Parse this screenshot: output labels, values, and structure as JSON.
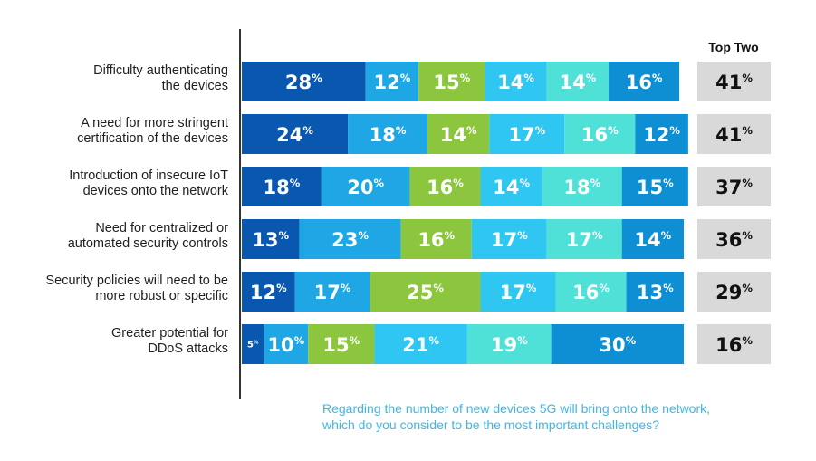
{
  "chart_data": {
    "type": "bar",
    "orientation": "horizontal",
    "stacked": true,
    "categories": [
      [
        "Difficulty authenticating",
        "the devices"
      ],
      [
        "A need for more stringent",
        "certification of the devices"
      ],
      [
        "Introduction of insecure IoT",
        "devices onto the network"
      ],
      [
        "Need for centralized or",
        "automated security controls"
      ],
      [
        "Security policies will need to be",
        "more robust or specific"
      ],
      [
        "Greater potential for",
        "DDoS attacks"
      ]
    ],
    "series": [
      {
        "color": "#0a57b0",
        "values": [
          28,
          24,
          18,
          13,
          12,
          5
        ]
      },
      {
        "color": "#1ea7e4",
        "values": [
          12,
          18,
          20,
          23,
          17,
          10
        ]
      },
      {
        "color": "#8cc63f",
        "values": [
          15,
          14,
          16,
          16,
          25,
          15
        ]
      },
      {
        "color": "#2fc6f2",
        "values": [
          14,
          17,
          14,
          17,
          17,
          21
        ]
      },
      {
        "color": "#4fe0d8",
        "values": [
          14,
          16,
          18,
          17,
          16,
          19
        ]
      },
      {
        "color": "#0e8fd4",
        "values": [
          16,
          12,
          15,
          14,
          13,
          30
        ]
      }
    ],
    "value_suffix": "%",
    "top_two": {
      "title": "Top Two",
      "values": [
        41,
        41,
        37,
        36,
        29,
        16
      ],
      "box_color": "#d9d9d9"
    },
    "xlim": [
      0,
      100
    ],
    "grid": false,
    "legend": "none"
  },
  "footnote": {
    "lines": [
      "Regarding the number of new devices 5G will bring onto the network,",
      "which do you consider to be the most important challenges?"
    ]
  }
}
